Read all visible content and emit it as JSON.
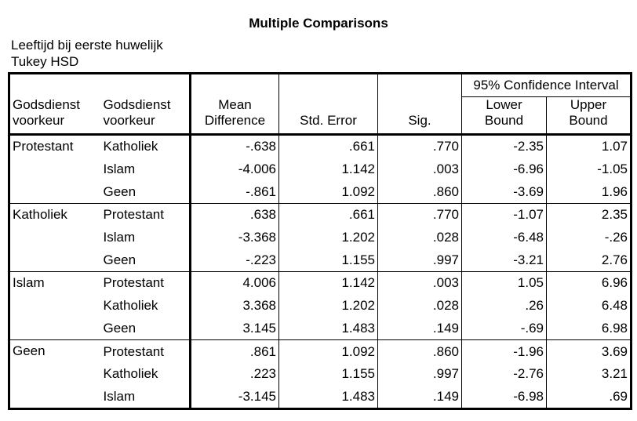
{
  "title": "Multiple Comparisons",
  "dependent_variable": "Leeftijd bij eerste huwelijk",
  "method": "Tukey HSD",
  "headers": {
    "col1": [
      "Godsdienst",
      "voorkeur"
    ],
    "col2": [
      "Godsdienst",
      "voorkeur"
    ],
    "mean_difference": [
      "Mean",
      "Difference"
    ],
    "std_error": "Std. Error",
    "sig": "Sig.",
    "ci_group": "95% Confidence Interval",
    "lower_bound": [
      "Lower",
      "Bound"
    ],
    "upper_bound": [
      "Upper",
      "Bound"
    ]
  },
  "groups": [
    {
      "name": "Protestant",
      "rows": [
        {
          "compare": "Katholiek",
          "mean_diff": "-.638",
          "std_error": ".661",
          "sig": ".770",
          "lower": "-2.35",
          "upper": "1.07"
        },
        {
          "compare": "Islam",
          "mean_diff": "-4.006",
          "std_error": "1.142",
          "sig": ".003",
          "lower": "-6.96",
          "upper": "-1.05"
        },
        {
          "compare": "Geen",
          "mean_diff": "-.861",
          "std_error": "1.092",
          "sig": ".860",
          "lower": "-3.69",
          "upper": "1.96"
        }
      ]
    },
    {
      "name": "Katholiek",
      "rows": [
        {
          "compare": "Protestant",
          "mean_diff": ".638",
          "std_error": ".661",
          "sig": ".770",
          "lower": "-1.07",
          "upper": "2.35"
        },
        {
          "compare": "Islam",
          "mean_diff": "-3.368",
          "std_error": "1.202",
          "sig": ".028",
          "lower": "-6.48",
          "upper": "-.26"
        },
        {
          "compare": "Geen",
          "mean_diff": "-.223",
          "std_error": "1.155",
          "sig": ".997",
          "lower": "-3.21",
          "upper": "2.76"
        }
      ]
    },
    {
      "name": "Islam",
      "rows": [
        {
          "compare": "Protestant",
          "mean_diff": "4.006",
          "std_error": "1.142",
          "sig": ".003",
          "lower": "1.05",
          "upper": "6.96"
        },
        {
          "compare": "Katholiek",
          "mean_diff": "3.368",
          "std_error": "1.202",
          "sig": ".028",
          "lower": ".26",
          "upper": "6.48"
        },
        {
          "compare": "Geen",
          "mean_diff": "3.145",
          "std_error": "1.483",
          "sig": ".149",
          "lower": "-.69",
          "upper": "6.98"
        }
      ]
    },
    {
      "name": "Geen",
      "rows": [
        {
          "compare": "Protestant",
          "mean_diff": ".861",
          "std_error": "1.092",
          "sig": ".860",
          "lower": "-1.96",
          "upper": "3.69"
        },
        {
          "compare": "Katholiek",
          "mean_diff": ".223",
          "std_error": "1.155",
          "sig": ".997",
          "lower": "-2.76",
          "upper": "3.21"
        },
        {
          "compare": "Islam",
          "mean_diff": "-3.145",
          "std_error": "1.483",
          "sig": ".149",
          "lower": "-6.98",
          "upper": ".69"
        }
      ]
    }
  ]
}
